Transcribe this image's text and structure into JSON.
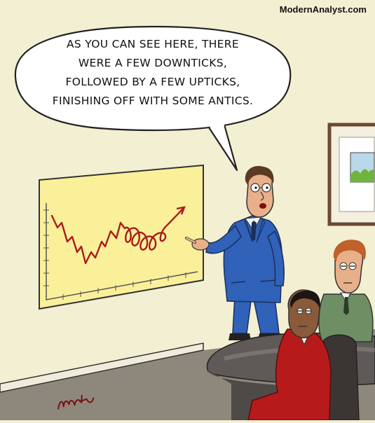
{
  "site": "ModernAnalyst.com",
  "caption_lines": [
    "AS YOU CAN SEE HERE, THERE",
    "WERE A FEW DOWNTICKS,",
    "FOLLOWED BY A FEW UPTICKS,",
    "FINISHING OFF WITH SOME ANTICS."
  ],
  "signature": "Cartoonist signature",
  "colors": {
    "wall": "#f3efd3",
    "floor": "#8e887c",
    "chart_board": "#fbf09a",
    "chart_line": "#a81c1c",
    "presenter_suit": "#2f62b8",
    "listener_suit": "#b71a1a",
    "listener2_suit": "#6e8f63",
    "table": "#5f5a57"
  }
}
